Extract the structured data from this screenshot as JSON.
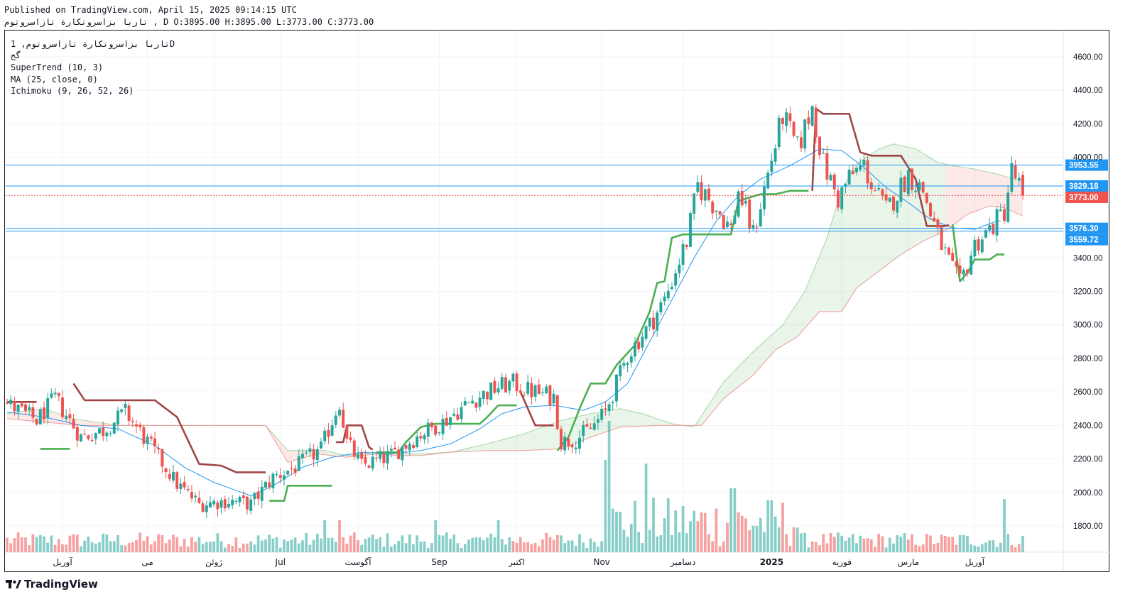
{
  "header": {
    "published": "Published on TradingView.com, April 15, 2025 09:14:15 UTC",
    "ohlc": "تاربا بزاسروتکارة تازاسروتوم , D O:3895.00 H:3895.00 L:3773.00 C:3773.00"
  },
  "legend": {
    "title": "تاربا بزاسروتکارة تازاسروتوم, 1D",
    "subtitle": "گج",
    "indicators": [
      "SuperTrend (10, 3)",
      "MA (25, close, 0)",
      "Ichimoku (9, 26, 52, 26)"
    ]
  },
  "footer": {
    "brand": "TradingView"
  },
  "colors": {
    "up": "#26a69a",
    "down": "#ef5350",
    "supertrend_up": "#4caf50",
    "supertrend_down": "#a04545",
    "ma": "#2196f3",
    "level_line": "#2196f3",
    "last_price": "#ef5350"
  },
  "chart_data": {
    "type": "candlestick",
    "x_axis": {
      "labels": [
        "آوریل",
        "می",
        "ژوئن",
        "Jul",
        "آگوست",
        "Sep",
        "اکتبر",
        "Nov",
        "دسامبر",
        "2025",
        "فوریه",
        "مارس",
        "آوریل"
      ],
      "label_candle_index": [
        15,
        38,
        56,
        74,
        95,
        117,
        138,
        161,
        183,
        207,
        226,
        244,
        262
      ]
    },
    "y_axis": {
      "ticks": [
        1800,
        2000,
        2200,
        2400,
        2600,
        2800,
        3000,
        3200,
        3400,
        3600,
        4000,
        4200,
        4400,
        4600
      ],
      "min": 1650,
      "max": 4700
    },
    "price_levels": [
      {
        "label": "3953.55",
        "value": 3953.55,
        "color": "#2196f3"
      },
      {
        "label": "3829.18",
        "value": 3829.18,
        "color": "#2196f3"
      },
      {
        "label": "3773.00",
        "value": 3773.0,
        "color": "#ef5350",
        "dotted": true
      },
      {
        "label": "3576.30",
        "value": 3576.3,
        "color": "#2196f3"
      },
      {
        "label": "3559.72",
        "value": 3559.72,
        "color": "#2196f3"
      }
    ],
    "anchors": [
      [
        0,
        2530
      ],
      [
        8,
        2430
      ],
      [
        13,
        2560
      ],
      [
        20,
        2330
      ],
      [
        26,
        2370
      ],
      [
        32,
        2480
      ],
      [
        40,
        2240
      ],
      [
        46,
        2050
      ],
      [
        52,
        1930
      ],
      [
        60,
        1950
      ],
      [
        66,
        1930
      ],
      [
        72,
        2090
      ],
      [
        78,
        2150
      ],
      [
        85,
        2260
      ],
      [
        90,
        2540
      ],
      [
        92,
        2300
      ],
      [
        96,
        2160
      ],
      [
        104,
        2220
      ],
      [
        112,
        2350
      ],
      [
        118,
        2420
      ],
      [
        126,
        2550
      ],
      [
        133,
        2630
      ],
      [
        137,
        2650
      ],
      [
        141,
        2610
      ],
      [
        148,
        2570
      ],
      [
        150,
        2300
      ],
      [
        154,
        2320
      ],
      [
        158,
        2380
      ],
      [
        162,
        2480
      ],
      [
        168,
        2820
      ],
      [
        174,
        3000
      ],
      [
        178,
        3150
      ],
      [
        184,
        3500
      ],
      [
        187,
        3830
      ],
      [
        192,
        3700
      ],
      [
        196,
        3570
      ],
      [
        198,
        3800
      ],
      [
        202,
        3540
      ],
      [
        206,
        3900
      ],
      [
        210,
        4250
      ],
      [
        214,
        4050
      ],
      [
        218,
        4300
      ],
      [
        221,
        3960
      ],
      [
        225,
        3750
      ],
      [
        228,
        3880
      ],
      [
        232,
        3950
      ],
      [
        234,
        3840
      ],
      [
        238,
        3680
      ],
      [
        244,
        3900
      ],
      [
        248,
        3800
      ],
      [
        252,
        3530
      ],
      [
        256,
        3320
      ],
      [
        258,
        3240
      ],
      [
        262,
        3480
      ],
      [
        266,
        3570
      ],
      [
        270,
        3680
      ],
      [
        272,
        3920
      ],
      [
        275,
        3790
      ]
    ],
    "candle_count": 276,
    "ohlc_last": {
      "open": 3895.0,
      "high": 3895.0,
      "low": 3773.0,
      "close": 3773.0
    },
    "supertrend_anchors": [
      [
        0,
        2540
      ],
      [
        8,
        2540
      ],
      [
        9,
        2260
      ],
      [
        17,
        2260
      ],
      [
        18,
        2650
      ],
      [
        21,
        2550
      ],
      [
        40,
        2550
      ],
      [
        46,
        2450
      ],
      [
        52,
        2170
      ],
      [
        58,
        2160
      ],
      [
        62,
        2120
      ],
      [
        70,
        2120
      ],
      [
        71,
        1950
      ],
      [
        75,
        1950
      ],
      [
        76,
        2040
      ],
      [
        88,
        2040
      ],
      [
        89,
        2300
      ],
      [
        91,
        2300
      ],
      [
        92,
        2400
      ],
      [
        96,
        2400
      ],
      [
        98,
        2270
      ],
      [
        100,
        2240
      ],
      [
        106,
        2240
      ],
      [
        108,
        2300
      ],
      [
        112,
        2390
      ],
      [
        116,
        2410
      ],
      [
        128,
        2410
      ],
      [
        130,
        2450
      ],
      [
        133,
        2520
      ],
      [
        138,
        2520
      ],
      [
        139,
        2600
      ],
      [
        143,
        2400
      ],
      [
        148,
        2400
      ],
      [
        149,
        2250
      ],
      [
        152,
        2330
      ],
      [
        155,
        2500
      ],
      [
        158,
        2650
      ],
      [
        162,
        2650
      ],
      [
        165,
        2760
      ],
      [
        170,
        2880
      ],
      [
        174,
        3080
      ],
      [
        176,
        3250
      ],
      [
        178,
        3260
      ],
      [
        180,
        3520
      ],
      [
        183,
        3540
      ],
      [
        196,
        3540
      ],
      [
        198,
        3740
      ],
      [
        204,
        3780
      ],
      [
        208,
        3780
      ],
      [
        212,
        3800
      ],
      [
        218,
        3800
      ],
      [
        219,
        4290
      ],
      [
        221,
        4260
      ],
      [
        228,
        4260
      ],
      [
        231,
        4030
      ],
      [
        234,
        4010
      ],
      [
        242,
        4010
      ],
      [
        246,
        3870
      ],
      [
        249,
        3590
      ],
      [
        254,
        3590
      ],
      [
        256,
        3600
      ],
      [
        257,
        3420
      ],
      [
        258,
        3260
      ],
      [
        260,
        3310
      ],
      [
        262,
        3390
      ],
      [
        266,
        3390
      ],
      [
        268,
        3420
      ],
      [
        270,
        3420
      ]
    ],
    "st_color_switch": [
      [
        0,
        "down"
      ],
      [
        9,
        "up"
      ],
      [
        18,
        "down"
      ],
      [
        71,
        "up"
      ],
      [
        89,
        "down"
      ],
      [
        100,
        "up"
      ],
      [
        139,
        "down"
      ],
      [
        149,
        "up"
      ],
      [
        218,
        "down"
      ],
      [
        256,
        "up"
      ]
    ],
    "ma_anchors": [
      [
        0,
        2480
      ],
      [
        10,
        2450
      ],
      [
        20,
        2400
      ],
      [
        30,
        2380
      ],
      [
        40,
        2280
      ],
      [
        48,
        2150
      ],
      [
        56,
        2060
      ],
      [
        66,
        1980
      ],
      [
        72,
        2040
      ],
      [
        80,
        2150
      ],
      [
        88,
        2210
      ],
      [
        96,
        2240
      ],
      [
        104,
        2230
      ],
      [
        112,
        2250
      ],
      [
        120,
        2290
      ],
      [
        128,
        2380
      ],
      [
        134,
        2470
      ],
      [
        140,
        2510
      ],
      [
        148,
        2520
      ],
      [
        156,
        2490
      ],
      [
        162,
        2540
      ],
      [
        168,
        2650
      ],
      [
        174,
        2900
      ],
      [
        180,
        3150
      ],
      [
        186,
        3400
      ],
      [
        192,
        3620
      ],
      [
        198,
        3770
      ],
      [
        204,
        3870
      ],
      [
        212,
        3950
      ],
      [
        220,
        4050
      ],
      [
        226,
        4040
      ],
      [
        232,
        3940
      ],
      [
        238,
        3820
      ],
      [
        244,
        3730
      ],
      [
        250,
        3630
      ],
      [
        256,
        3580
      ],
      [
        262,
        3570
      ],
      [
        268,
        3620
      ]
    ],
    "cloud_top_anchors": [
      [
        0,
        2470
      ],
      [
        10,
        2500
      ],
      [
        18,
        2440
      ],
      [
        30,
        2400
      ],
      [
        44,
        2400
      ],
      [
        54,
        2400
      ],
      [
        62,
        2400
      ],
      [
        70,
        2400
      ],
      [
        76,
        2250
      ],
      [
        86,
        2250
      ],
      [
        92,
        2220
      ],
      [
        100,
        2240
      ],
      [
        106,
        2230
      ],
      [
        112,
        2230
      ],
      [
        120,
        2240
      ],
      [
        130,
        2290
      ],
      [
        140,
        2350
      ],
      [
        150,
        2430
      ],
      [
        158,
        2470
      ],
      [
        166,
        2500
      ],
      [
        172,
        2470
      ],
      [
        180,
        2410
      ],
      [
        186,
        2390
      ],
      [
        194,
        2660
      ],
      [
        202,
        2840
      ],
      [
        210,
        3000
      ],
      [
        216,
        3200
      ],
      [
        222,
        3520
      ],
      [
        226,
        3810
      ],
      [
        230,
        3960
      ],
      [
        236,
        4050
      ],
      [
        240,
        4080
      ],
      [
        246,
        4050
      ],
      [
        252,
        3970
      ],
      [
        256,
        3950
      ],
      [
        262,
        3930
      ],
      [
        268,
        3900
      ],
      [
        276,
        3850
      ]
    ],
    "cloud_bottom_anchors": [
      [
        0,
        2440
      ],
      [
        10,
        2420
      ],
      [
        20,
        2400
      ],
      [
        30,
        2400
      ],
      [
        44,
        2400
      ],
      [
        54,
        2400
      ],
      [
        62,
        2400
      ],
      [
        70,
        2400
      ],
      [
        76,
        2180
      ],
      [
        84,
        2230
      ],
      [
        92,
        2210
      ],
      [
        100,
        2230
      ],
      [
        106,
        2220
      ],
      [
        112,
        2220
      ],
      [
        120,
        2240
      ],
      [
        130,
        2250
      ],
      [
        140,
        2250
      ],
      [
        150,
        2260
      ],
      [
        158,
        2330
      ],
      [
        166,
        2390
      ],
      [
        176,
        2400
      ],
      [
        182,
        2400
      ],
      [
        188,
        2400
      ],
      [
        194,
        2560
      ],
      [
        202,
        2700
      ],
      [
        208,
        2850
      ],
      [
        214,
        2930
      ],
      [
        220,
        3080
      ],
      [
        226,
        3080
      ],
      [
        230,
        3220
      ],
      [
        236,
        3320
      ],
      [
        242,
        3420
      ],
      [
        248,
        3500
      ],
      [
        254,
        3560
      ],
      [
        260,
        3660
      ],
      [
        266,
        3710
      ],
      [
        270,
        3700
      ],
      [
        276,
        3640
      ]
    ],
    "cloud_sign_switch": [
      [
        0,
        "bear"
      ],
      [
        25,
        "bear"
      ],
      [
        66,
        "bear"
      ],
      [
        86,
        "bull"
      ],
      [
        102,
        "bull"
      ],
      [
        150,
        "bull"
      ],
      [
        182,
        "bull"
      ],
      [
        254,
        "bear"
      ]
    ],
    "volume_heights": "relative"
  }
}
